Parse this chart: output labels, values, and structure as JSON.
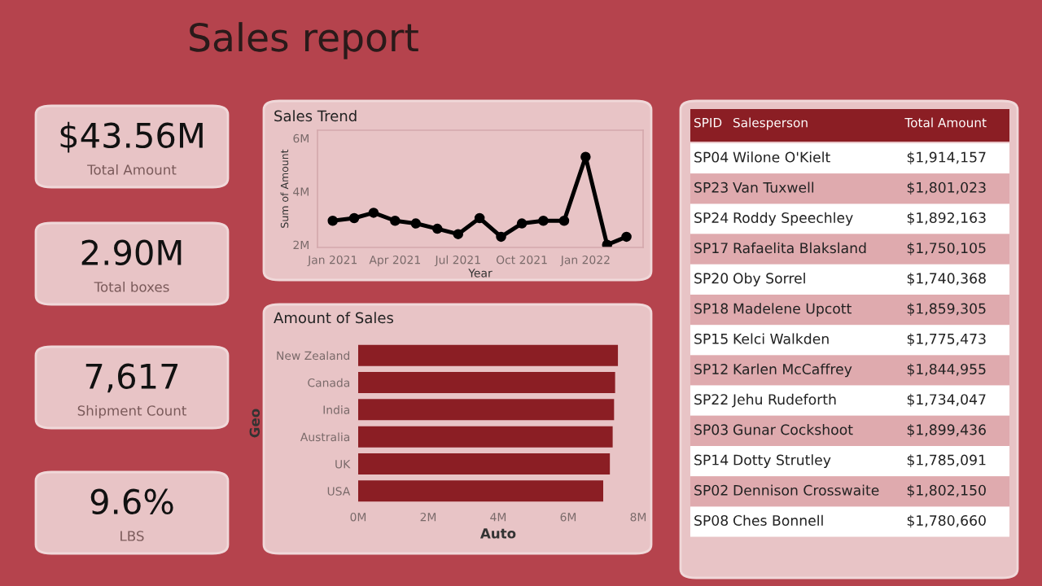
{
  "chart_data": [
    {
      "type": "other",
      "title": "Sales report",
      "annotations": [
        "$43.56M",
        "Total Amount",
        "2.90M",
        "Total boxes",
        "7,617",
        "Shipment Count",
        "9.6%",
        "LBS"
      ]
    },
    {
      "type": "line",
      "title": "Sales Trend",
      "xlabel": "Year",
      "ylabel": "Sum of Amount",
      "color": "#000000",
      "marker": "circle",
      "line_style": "solid",
      "grid": false,
      "x": [
        "2021-01",
        "2021-02",
        "2021-03",
        "2021-04",
        "2021-05",
        "2021-06",
        "2021-07",
        "2021-08",
        "2021-09",
        "2021-10",
        "2021-11",
        "2021-12",
        "2022-01",
        "2022-02",
        "2022-03"
      ],
      "values": [
        2.9,
        3.0,
        3.2,
        2.9,
        2.8,
        2.6,
        2.4,
        3.0,
        2.3,
        2.8,
        2.9,
        2.9,
        5.3,
        2.0,
        2.3
      ],
      "xlim": [
        "2020-12-10",
        "2022-03-25"
      ],
      "xticks": [
        {
          "value": "2021-01",
          "label": "Jan 2021"
        },
        {
          "value": "2021-04",
          "label": "Apr 2021"
        },
        {
          "value": "2021-07",
          "label": "Jul 2021"
        },
        {
          "value": "2021-10",
          "label": "Oct 2021"
        },
        {
          "value": "2022-01",
          "label": "Jan 2022"
        }
      ],
      "ylim": [
        1.9,
        6.3
      ],
      "yticks": [
        {
          "value": 2,
          "label": "2M"
        },
        {
          "value": 4,
          "label": "4M"
        },
        {
          "value": 6,
          "label": "6M"
        }
      ]
    },
    {
      "type": "bar",
      "orientation": "horizontal",
      "title": "Amount of Sales",
      "xlabel": "Auto",
      "ylabel": "Geo",
      "color": "#8b1e24",
      "grid": false,
      "categories": [
        "New Zealand",
        "Canada",
        "India",
        "Australia",
        "UK",
        "USA"
      ],
      "values": [
        7.42,
        7.34,
        7.31,
        7.27,
        7.19,
        7.0
      ],
      "xlim": [
        0,
        8
      ],
      "xticks": [
        {
          "value": 0,
          "label": "0M"
        },
        {
          "value": 2,
          "label": "2M"
        },
        {
          "value": 4,
          "label": "4M"
        },
        {
          "value": 6,
          "label": "6M"
        },
        {
          "value": 8,
          "label": "8M"
        }
      ]
    },
    {
      "type": "other",
      "categories": [
        "SPID",
        "Salesperson",
        "Total Amount"
      ],
      "annotations": [
        "SP04",
        "Wilone O'Kielt",
        "$1,914,157",
        "SP23",
        "Van Tuxwell",
        "$1,801,023",
        "SP24",
        "Roddy Speechley",
        "$1,892,163",
        "SP17",
        "Rafaelita Blaksland",
        "$1,750,105",
        "SP20",
        "Oby Sorrel",
        "$1,740,368",
        "SP18",
        "Madelene Upcott",
        "$1,859,305",
        "SP15",
        "Kelci Walkden",
        "$1,775,473",
        "SP12",
        "Karlen McCaffrey",
        "$1,844,955",
        "SP22",
        "Jehu Rudeforth",
        "$1,734,047",
        "SP03",
        "Gunar Cockshoot",
        "$1,899,436",
        "SP14",
        "Dotty Strutley",
        "$1,785,091",
        "SP02",
        "Dennison Crosswaite",
        "$1,802,150",
        "SP08",
        "Ches Bonnell",
        "$1,780,660"
      ]
    }
  ]
}
